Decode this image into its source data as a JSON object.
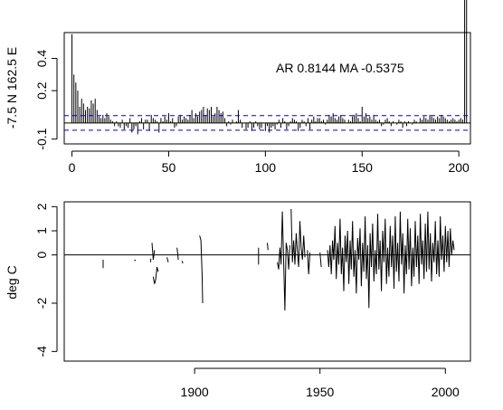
{
  "chart_data": [
    {
      "type": "bar",
      "ylabel": "-7.5 N 162.5 E",
      "annotation": "AR 0.8144  MA -0.5375",
      "x_ticks": [
        0,
        50,
        100,
        150,
        200
      ],
      "y_ticks": [
        "-0.1",
        "0.2",
        "0.4"
      ],
      "xlim": [
        -4,
        206
      ],
      "ylim": [
        -0.13,
        0.56
      ],
      "confidence_level": 0.045,
      "lags": [
        0,
        1,
        2,
        3,
        4,
        5,
        6,
        7,
        8,
        9,
        10,
        11,
        12,
        13,
        14,
        15,
        16,
        17,
        18,
        19,
        20,
        21,
        22,
        23,
        24,
        25,
        26,
        27,
        28,
        29,
        30,
        31,
        32,
        33,
        34,
        35,
        36,
        37,
        38,
        39,
        40,
        41,
        42,
        43,
        44,
        45,
        46,
        47,
        48,
        49,
        50,
        51,
        52,
        53,
        54,
        55,
        56,
        57,
        58,
        59,
        60,
        61,
        62,
        63,
        64,
        65,
        66,
        67,
        68,
        69,
        70,
        71,
        72,
        73,
        74,
        75,
        76,
        77,
        78,
        79,
        80,
        81,
        82,
        83,
        84,
        85,
        86,
        87,
        88,
        89,
        90,
        91,
        92,
        93,
        94,
        95,
        96,
        97,
        98,
        99,
        100,
        101,
        102,
        103,
        104,
        105,
        106,
        107,
        108,
        109,
        110,
        111,
        112,
        113,
        114,
        115,
        116,
        117,
        118,
        119,
        120,
        121,
        122,
        123,
        124,
        125,
        126,
        127,
        128,
        129,
        130,
        131,
        132,
        133,
        134,
        135,
        136,
        137,
        138,
        139,
        140,
        141,
        142,
        143,
        144,
        145,
        146,
        147,
        148,
        149,
        150,
        151,
        152,
        153,
        154,
        155,
        156,
        157,
        158,
        159,
        160,
        161,
        162,
        163,
        164,
        165,
        166,
        167,
        168,
        169,
        170,
        171,
        172,
        173,
        174,
        175,
        176,
        177,
        178,
        179,
        180,
        181,
        182,
        183,
        184,
        185,
        186,
        187,
        188,
        189,
        190,
        191,
        192,
        193,
        194,
        195,
        196,
        197,
        198,
        199,
        200,
        201,
        202,
        203,
        204
      ],
      "acf": [
        0.55,
        0.3,
        0.25,
        0.2,
        0.1,
        0.15,
        0.12,
        0.08,
        0.1,
        0.09,
        0.14,
        0.12,
        0.15,
        0.08,
        0.04,
        0.03,
        0.05,
        0.03,
        0.06,
        0.04,
        0.02,
        0.01,
        -0.02,
        0.01,
        -0.02,
        -0.03,
        0.02,
        -0.04,
        -0.02,
        -0.03,
        0.03,
        -0.06,
        -0.04,
        -0.02,
        -0.07,
        0.01,
        0.03,
        -0.04,
        0.02,
        0.02,
        -0.05,
        0.05,
        0.03,
        0.02,
        0.01,
        -0.06,
        0.03,
        0.01,
        0.04,
        0.02,
        0.06,
        0.01,
        0.03,
        -0.03,
        -0.02,
        0.04,
        0.05,
        0.02,
        0.04,
        0.03,
        0.02,
        0.05,
        0.08,
        0.03,
        0.06,
        0.04,
        0.07,
        0.08,
        0.1,
        0.05,
        0.09,
        0.08,
        0.1,
        0.04,
        0.06,
        0.1,
        0.08,
        0.06,
        0.07,
        0.03,
        -0.02,
        0.01,
        -0.01,
        0.02,
        0.0,
        0.01,
        0.08,
        0.02,
        -0.03,
        0.0,
        -0.04,
        -0.03,
        0.01,
        -0.05,
        -0.03,
        0.01,
        -0.02,
        -0.04,
        -0.03,
        0.0,
        -0.05,
        -0.02,
        -0.06,
        -0.03,
        -0.02,
        -0.04,
        -0.01,
        0.02,
        -0.03,
        0.03,
        0.01,
        -0.04,
        -0.02,
        0.01,
        0.03,
        0.02,
        0.01,
        -0.05,
        -0.03,
        0.02,
        0.01,
        -0.02,
        0.03,
        -0.04,
        0.02,
        0.04,
        0.01,
        0.03,
        0.03,
        0.01,
        0.02,
        -0.01,
        0.02,
        0.05,
        0.04,
        0.06,
        0.03,
        0.02,
        0.04,
        0.05,
        0.03,
        0.02,
        0.0,
        0.02,
        0.01,
        0.04,
        0.05,
        0.06,
        0.03,
        0.01,
        0.1,
        0.04,
        0.06,
        0.03,
        0.04,
        0.02,
        0.05,
        0.02,
        0.01,
        0.02,
        -0.02,
        -0.01,
        0.02,
        0.03,
        0.01,
        -0.02,
        0.01,
        0.0,
        -0.01,
        0.02,
        0.01,
        -0.03,
        0.01,
        -0.02,
        0.01,
        0.0,
        -0.01,
        0.02,
        0.01,
        0.0,
        0.03,
        0.02,
        0.04,
        0.03,
        0.02,
        0.05,
        0.04,
        0.03,
        0.02,
        0.04,
        0.03,
        0.05,
        0.04,
        0.03,
        0.02,
        0.01,
        0.02,
        0.03,
        0.02,
        0.01,
        0.02,
        0.03,
        0.02
      ]
    },
    {
      "type": "line",
      "ylabel": "deg C",
      "x_ticks": [
        1900,
        1950,
        2000
      ],
      "y_ticks": [
        "-4",
        "-2",
        "0",
        "1",
        "2"
      ],
      "xlim": [
        1848,
        2010
      ],
      "ylim": [
        -4.4,
        2.2
      ],
      "segments": [
        {
          "x": [
            1863.5,
            1863.5
          ],
          "y": [
            -0.2,
            -0.55
          ]
        },
        {
          "x": [
            1876.0,
            1876.5
          ],
          "y": [
            -0.2,
            -0.25
          ]
        },
        {
          "x": [
            1882.5,
            1882.5
          ],
          "y": [
            -0.15,
            -0.3
          ]
        },
        {
          "x": [
            1883.0,
            1883.5,
            1884.0
          ],
          "y": [
            0.5,
            -0.2,
            0.2
          ]
        },
        {
          "x": [
            1883.5,
            1884.0,
            1884.5,
            1885.0,
            1885.5
          ],
          "y": [
            -0.9,
            -1.2,
            -1.0,
            -0.5,
            -0.7
          ]
        },
        {
          "x": [
            1889.0,
            1889.5
          ],
          "y": [
            -0.1,
            -0.3
          ]
        },
        {
          "x": [
            1893.0,
            1893.5
          ],
          "y": [
            0.3,
            -0.2
          ]
        },
        {
          "x": [
            1895.0,
            1895.3
          ],
          "y": [
            -0.25,
            -0.35
          ]
        },
        {
          "x": [
            1902.0,
            1902.5,
            1903.0
          ],
          "y": [
            0.8,
            0.6,
            -0.8
          ]
        },
        {
          "x": [
            1903.0,
            1903.2
          ],
          "y": [
            -0.8,
            -2.0
          ]
        },
        {
          "x": [
            1925.5,
            1925.5
          ],
          "y": [
            0.3,
            -0.4
          ]
        },
        {
          "x": [
            1929.0,
            1929.3
          ],
          "y": [
            0.5,
            0.2
          ]
        },
        {
          "x": [
            1933.0,
            1933.5,
            1934.0,
            1934.5,
            1935.0,
            1935.5,
            1936.0,
            1936.5,
            1937.0,
            1937.5,
            1938.0
          ],
          "y": [
            -0.3,
            -0.6,
            0.3,
            -0.4,
            1.8,
            -0.2,
            -2.3,
            0.5,
            0.2,
            -0.6,
            0.4
          ]
        },
        {
          "x": [
            1938.5,
            1939.0,
            1939.5,
            1940.0,
            1940.5,
            1941.0,
            1941.5,
            1942.0,
            1942.5,
            1943.0,
            1943.5,
            1944.0
          ],
          "y": [
            1.9,
            -0.3,
            0.6,
            -0.4,
            0.9,
            0.1,
            -0.5,
            1.4,
            0.3,
            -0.2,
            0.8,
            -0.1
          ]
        },
        {
          "x": [
            1945.0,
            1945.5,
            1946.0
          ],
          "y": [
            0.2,
            -0.8,
            0.1
          ]
        },
        {
          "x": [
            1950.0,
            1950.5
          ],
          "y": [
            0.1,
            -0.5
          ]
        },
        {
          "x": [
            1953.0,
            1953.5,
            1954.0,
            1954.5,
            1955.0,
            1955.5,
            1956.0,
            1956.5,
            1957.0,
            1957.5,
            1958.0,
            1958.5,
            1959.0,
            1959.5,
            1960.0,
            1960.5,
            1961.0,
            1961.5,
            1962.0,
            1962.5,
            1963.0,
            1963.5,
            1964.0,
            1964.5,
            1965.0,
            1965.5,
            1966.0,
            1966.5,
            1967.0,
            1967.5,
            1968.0,
            1968.5,
            1969.0,
            1969.5,
            1970.0,
            1970.5,
            1971.0,
            1971.5,
            1972.0,
            1972.5,
            1973.0,
            1973.5,
            1974.0,
            1974.5,
            1975.0,
            1975.5,
            1976.0,
            1976.5,
            1977.0,
            1977.5,
            1978.0,
            1978.5,
            1979.0,
            1979.5,
            1980.0,
            1980.5,
            1981.0,
            1981.5,
            1982.0,
            1982.5,
            1983.0,
            1983.5,
            1984.0,
            1984.5,
            1985.0,
            1985.5,
            1986.0,
            1986.5,
            1987.0,
            1987.5,
            1988.0,
            1988.5,
            1989.0,
            1989.5,
            1990.0,
            1990.5,
            1991.0,
            1991.5,
            1992.0,
            1992.5,
            1993.0,
            1993.5,
            1994.0,
            1994.5,
            1995.0,
            1995.5,
            1996.0,
            1996.5,
            1997.0,
            1997.5,
            1998.0,
            1998.5,
            1999.0,
            1999.5,
            2000.0,
            2000.5,
            2001.0,
            2001.5,
            2002.0,
            2002.5,
            2003.0,
            2003.5
          ],
          "y": [
            0.2,
            -0.5,
            0.4,
            -0.8,
            0.6,
            -0.2,
            1.2,
            -1.0,
            0.5,
            -0.4,
            1.5,
            -0.8,
            0.3,
            -1.5,
            0.8,
            -0.3,
            1.0,
            -1.2,
            0.6,
            -0.6,
            1.4,
            -0.9,
            0.2,
            -1.6,
            0.7,
            -0.2,
            1.1,
            -1.3,
            0.5,
            -0.7,
            1.6,
            -1.0,
            0.4,
            -2.2,
            0.9,
            -0.5,
            1.3,
            -1.1,
            0.2,
            -0.8,
            1.7,
            -0.6,
            0.6,
            -1.5,
            1.0,
            -0.3,
            1.5,
            -1.2,
            0.3,
            -0.9,
            1.2,
            -0.5,
            0.8,
            -1.4,
            1.6,
            -0.7,
            0.5,
            -1.1,
            1.8,
            -0.4,
            0.9,
            -1.6,
            0.4,
            -0.8,
            1.5,
            -0.6,
            1.1,
            -1.3,
            0.3,
            -0.9,
            1.4,
            -0.5,
            0.8,
            -1.2,
            1.7,
            -0.4,
            0.6,
            -1.0,
            1.3,
            -0.7,
            1.8,
            -0.6,
            0.9,
            -1.1,
            0.5,
            -0.3,
            1.4,
            -0.8,
            0.6,
            -0.9,
            1.6,
            -0.2,
            0.8,
            -0.7,
            1.2,
            -0.3,
            1.0,
            -0.5,
            1.1,
            0.0,
            0.6,
            0.2
          ]
        }
      ]
    }
  ]
}
